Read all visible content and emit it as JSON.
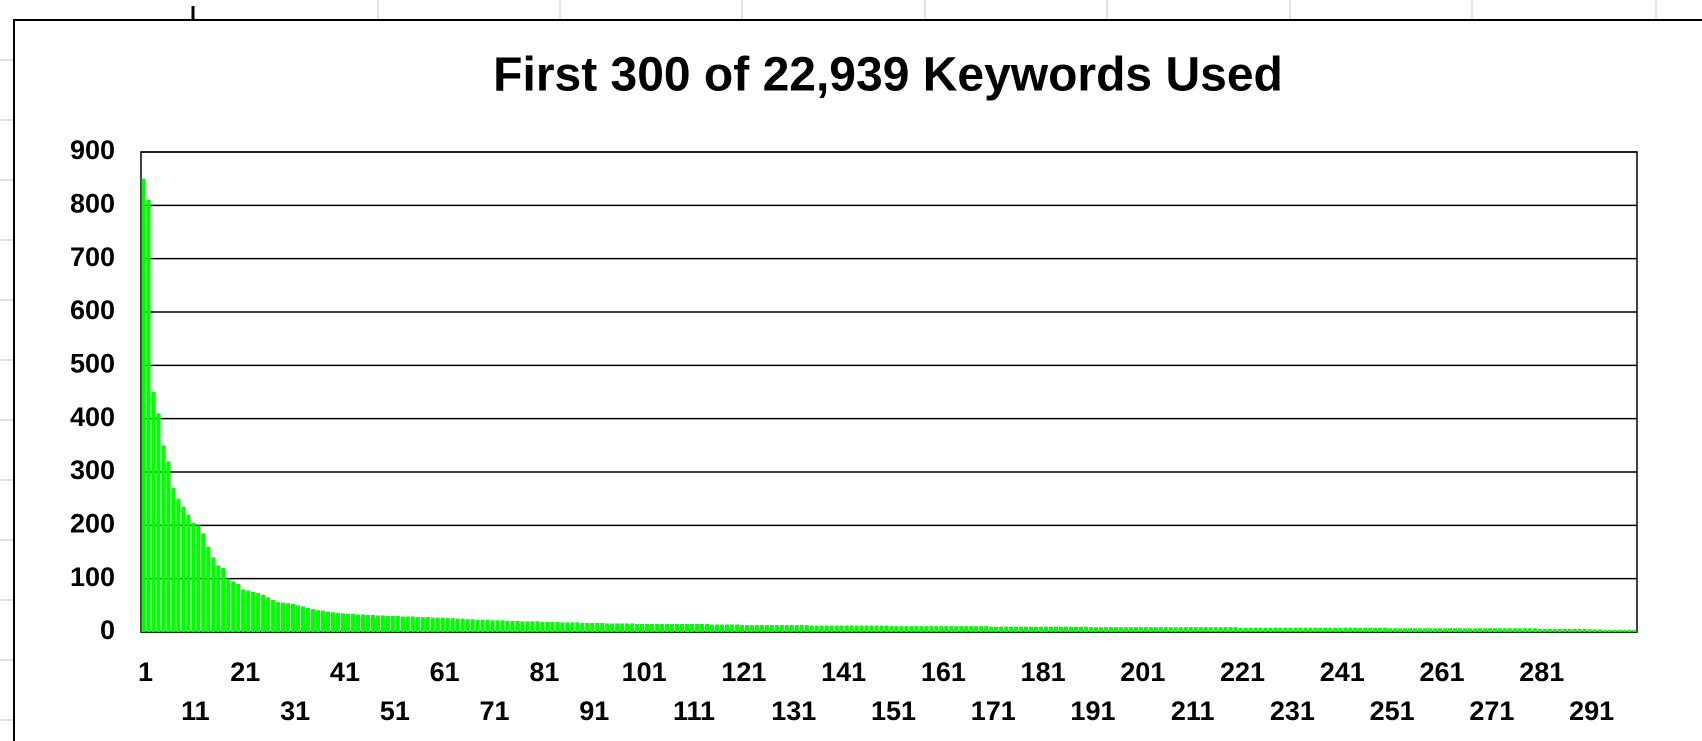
{
  "chart_data": {
    "type": "bar",
    "title": "First 300 of 22,939 Keywords Used",
    "categories": [
      1,
      null,
      null,
      null,
      null,
      null,
      null,
      null,
      null,
      null,
      11,
      null,
      null,
      null,
      null,
      null,
      null,
      null,
      null,
      null,
      21,
      null,
      null,
      null,
      null,
      null,
      null,
      null,
      null,
      null,
      31,
      null,
      null,
      null,
      null,
      null,
      null,
      null,
      null,
      null,
      41,
      null,
      null,
      null,
      null,
      null,
      null,
      null,
      null,
      null,
      51,
      null,
      null,
      null,
      null,
      null,
      null,
      null,
      null,
      null,
      61,
      null,
      null,
      null,
      null,
      null,
      null,
      null,
      null,
      null,
      71,
      null,
      null,
      null,
      null,
      null,
      null,
      null,
      null,
      null,
      81,
      null,
      null,
      null,
      null,
      null,
      null,
      null,
      null,
      null,
      91,
      null,
      null,
      null,
      null,
      null,
      null,
      null,
      null,
      null,
      101,
      null,
      null,
      null,
      null,
      null,
      null,
      null,
      null,
      null,
      111,
      null,
      null,
      null,
      null,
      null,
      null,
      null,
      null,
      null,
      121,
      null,
      null,
      null,
      null,
      null,
      null,
      null,
      null,
      null,
      131,
      null,
      null,
      null,
      null,
      null,
      null,
      null,
      null,
      null,
      141,
      null,
      null,
      null,
      null,
      null,
      null,
      null,
      null,
      null,
      151,
      null,
      null,
      null,
      null,
      null,
      null,
      null,
      null,
      null,
      161,
      null,
      null,
      null,
      null,
      null,
      null,
      null,
      null,
      null,
      171,
      null,
      null,
      null,
      null,
      null,
      null,
      null,
      null,
      null,
      181,
      null,
      null,
      null,
      null,
      null,
      null,
      null,
      null,
      null,
      191,
      null,
      null,
      null,
      null,
      null,
      null,
      null,
      null,
      null,
      201,
      null,
      null,
      null,
      null,
      null,
      null,
      null,
      null,
      null,
      211,
      null,
      null,
      null,
      null,
      null,
      null,
      null,
      null,
      null,
      221,
      null,
      null,
      null,
      null,
      null,
      null,
      null,
      null,
      null,
      231,
      null,
      null,
      null,
      null,
      null,
      null,
      null,
      null,
      null,
      241,
      null,
      null,
      null,
      null,
      null,
      null,
      null,
      null,
      null,
      251,
      null,
      null,
      null,
      null,
      null,
      null,
      null,
      null,
      null,
      261,
      null,
      null,
      null,
      null,
      null,
      null,
      null,
      null,
      null,
      271,
      null,
      null,
      null,
      null,
      null,
      null,
      null,
      null,
      null,
      281,
      null,
      null,
      null,
      null,
      null,
      null,
      null,
      null,
      null,
      291,
      null,
      null,
      null,
      null,
      null,
      null,
      null,
      null,
      null
    ],
    "values": [
      850,
      810,
      450,
      410,
      350,
      320,
      270,
      250,
      235,
      220,
      205,
      200,
      185,
      160,
      140,
      125,
      120,
      100,
      95,
      90,
      80,
      78,
      75,
      73,
      70,
      65,
      60,
      56,
      55,
      54,
      53,
      50,
      48,
      45,
      43,
      41,
      40,
      38,
      37,
      36,
      35,
      34,
      34,
      33,
      33,
      32,
      32,
      31,
      31,
      30,
      30,
      30,
      29,
      29,
      29,
      28,
      28,
      28,
      27,
      27,
      27,
      26,
      26,
      25,
      25,
      24,
      24,
      23,
      23,
      23,
      22,
      22,
      22,
      21,
      21,
      21,
      20,
      20,
      20,
      20,
      19,
      19,
      19,
      19,
      18,
      18,
      18,
      18,
      17,
      17,
      17,
      17,
      17,
      16,
      16,
      16,
      16,
      16,
      16,
      15,
      15,
      15,
      15,
      15,
      15,
      15,
      15,
      15,
      15,
      15,
      15,
      15,
      15,
      15,
      14,
      14,
      14,
      14,
      14,
      14,
      13,
      13,
      13,
      13,
      13,
      13,
      13,
      13,
      13,
      13,
      13,
      13,
      13,
      13,
      12,
      12,
      12,
      12,
      12,
      12,
      12,
      12,
      12,
      12,
      12,
      12,
      12,
      12,
      12,
      12,
      11,
      11,
      11,
      11,
      11,
      11,
      11,
      11,
      11,
      11,
      11,
      11,
      11,
      11,
      11,
      11,
      11,
      11,
      11,
      11,
      10,
      10,
      10,
      10,
      10,
      10,
      10,
      10,
      10,
      10,
      10,
      10,
      10,
      10,
      10,
      10,
      10,
      10,
      10,
      10,
      9,
      9,
      9,
      9,
      9,
      9,
      9,
      9,
      9,
      9,
      9,
      9,
      9,
      9,
      9,
      9,
      9,
      9,
      9,
      9,
      9,
      9,
      9,
      9,
      9,
      9,
      9,
      9,
      9,
      9,
      8,
      8,
      8,
      8,
      8,
      8,
      8,
      8,
      8,
      8,
      8,
      8,
      8,
      8,
      8,
      8,
      8,
      8,
      8,
      8,
      8,
      8,
      8,
      8,
      8,
      8,
      8,
      8,
      8,
      8,
      7,
      7,
      7,
      7,
      7,
      7,
      7,
      7,
      7,
      7,
      7,
      7,
      7,
      7,
      7,
      7,
      7,
      7,
      7,
      7,
      7,
      7,
      7,
      7,
      7,
      7,
      7,
      7,
      7,
      7,
      6,
      6,
      6,
      6,
      6,
      6,
      6,
      6,
      6,
      6,
      5,
      5,
      5,
      4,
      4,
      4,
      4,
      4,
      4,
      4
    ],
    "color": "#00ff00",
    "ylim": [
      0,
      900
    ],
    "yticks": [
      0,
      100,
      200,
      300,
      400,
      500,
      600,
      700,
      800,
      900
    ],
    "grid": true
  }
}
